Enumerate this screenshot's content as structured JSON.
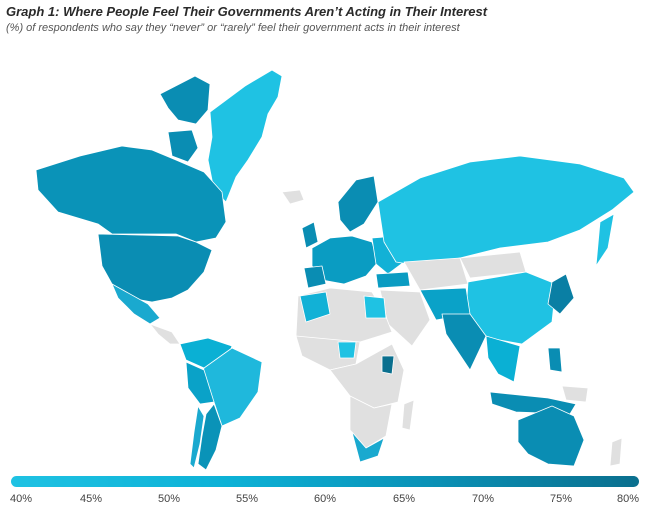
{
  "title": "Graph 1: Where People Feel Their Governments Aren’t Acting in Their Interest",
  "subtitle": "(%) of respondents who say they “never” or “rarely” feel their government acts in their interest",
  "legend": {
    "min": 40,
    "max": 80,
    "ticks": [
      "40%",
      "45%",
      "50%",
      "55%",
      "60%",
      "65%",
      "70%",
      "75%",
      "80%"
    ]
  },
  "colors": {
    "no_data": "#e0e0e0",
    "low": "#1fc2e3",
    "mid": "#0a93b8",
    "high": "#0a6f8e"
  }
}
